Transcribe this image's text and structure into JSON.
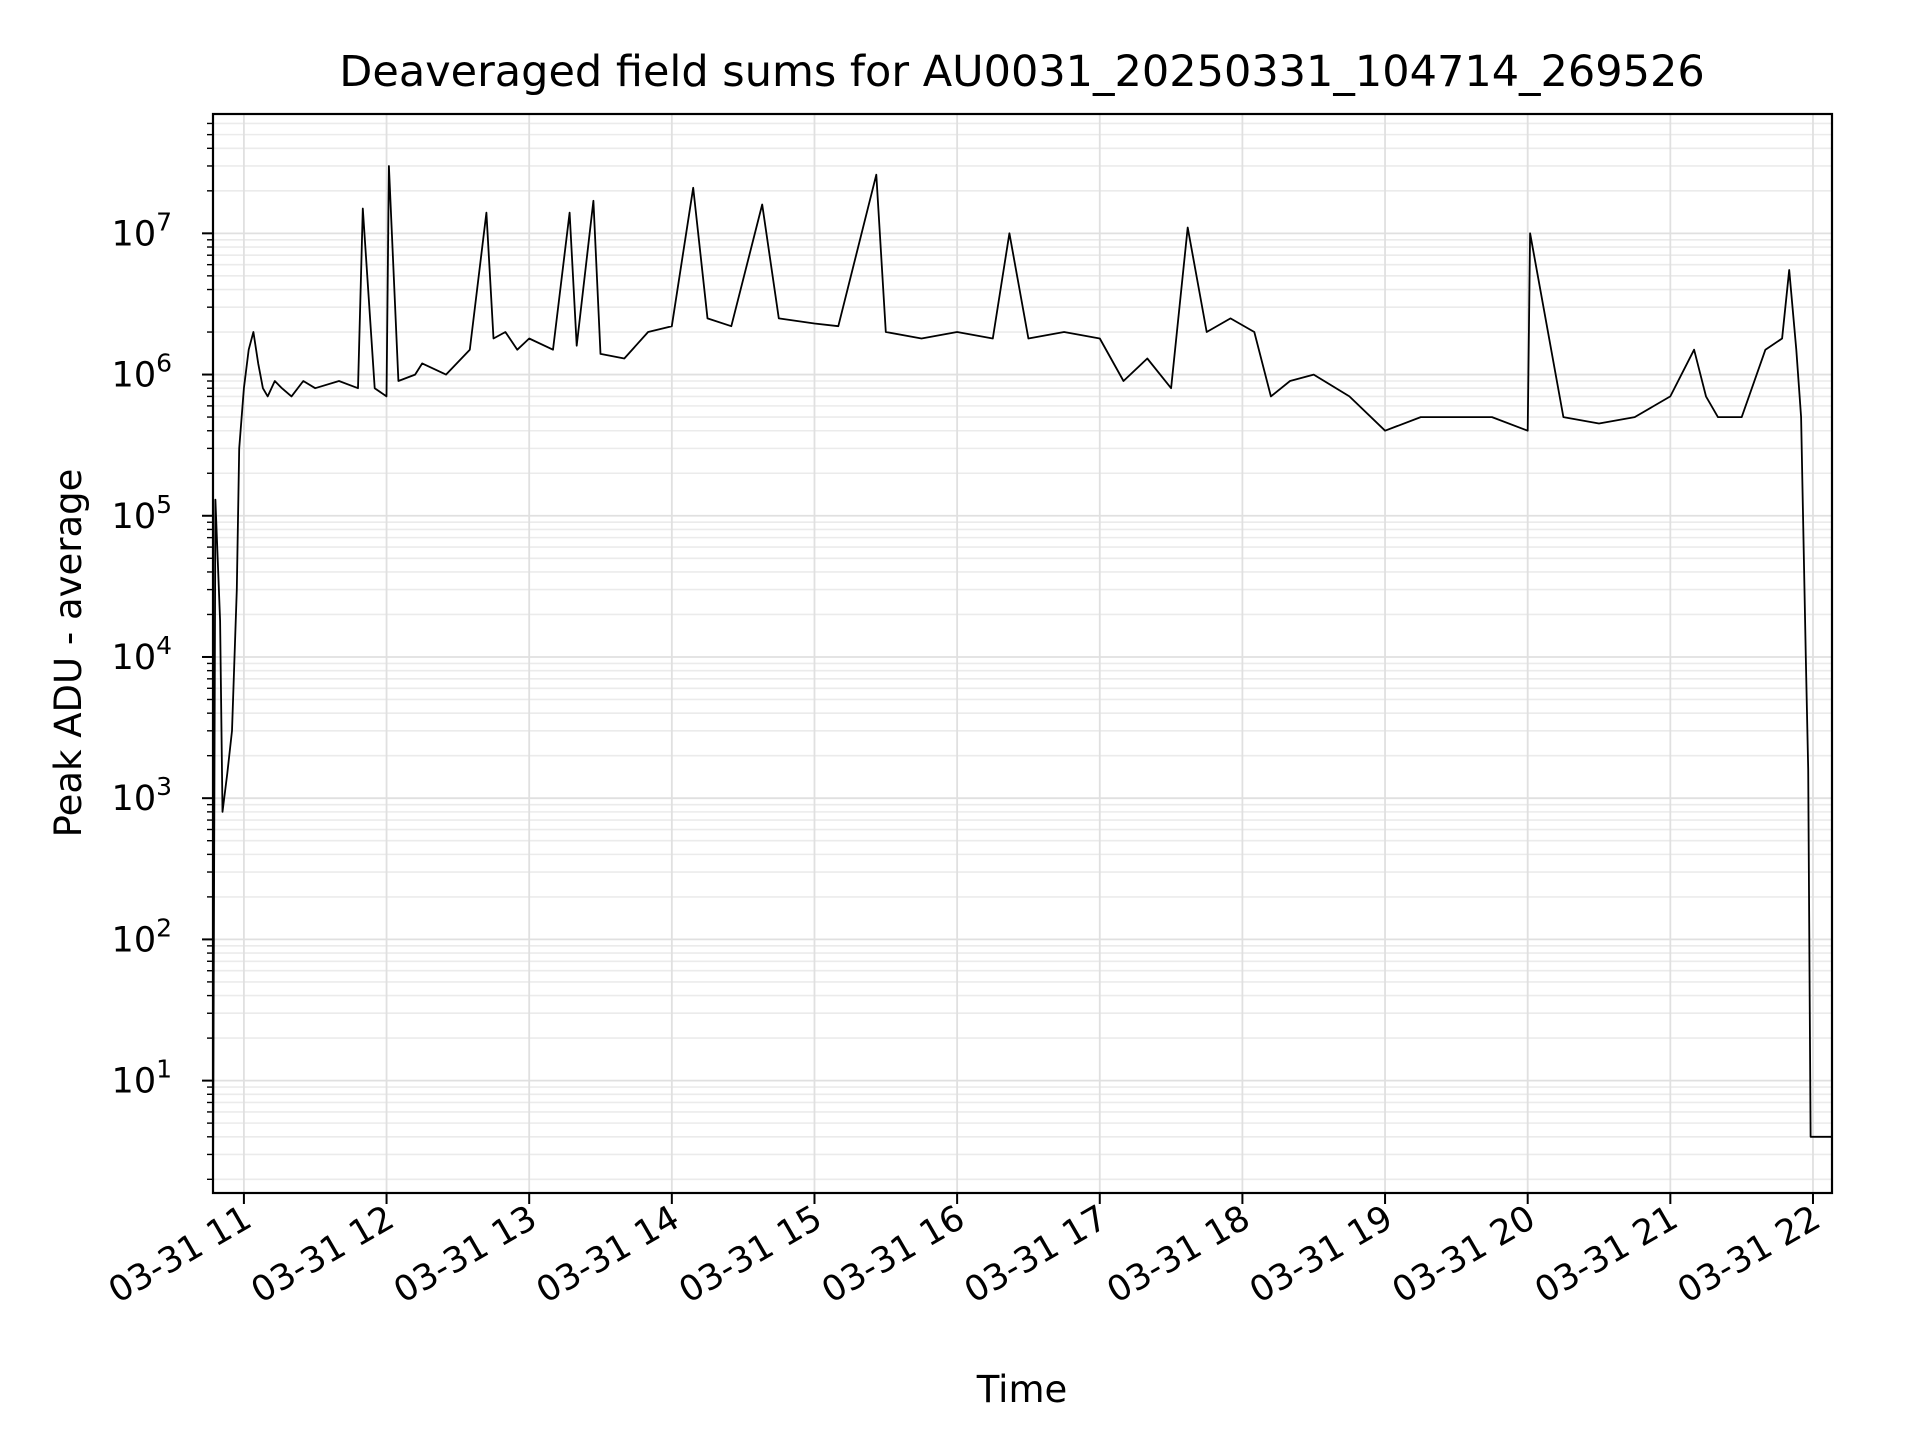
{
  "chart_data": {
    "type": "line",
    "title": "Deaveraged field sums for AU0031_20250331_104714_269526",
    "xlabel": "Time",
    "ylabel": "Peak ADU - average",
    "yscale": "log",
    "xlim": [
      "2025-03-31 10:47",
      "2025-03-31 22:08"
    ],
    "ylim": [
      1.6,
      70000000
    ],
    "grid": true,
    "x_ticks": [
      "03-31 11",
      "03-31 12",
      "03-31 13",
      "03-31 14",
      "03-31 15",
      "03-31 16",
      "03-31 17",
      "03-31 18",
      "03-31 19",
      "03-31 20",
      "03-31 21",
      "03-31 22"
    ],
    "y_ticks": [
      {
        "value": 10,
        "base": "10",
        "exp": "1"
      },
      {
        "value": 100,
        "base": "10",
        "exp": "2"
      },
      {
        "value": 1000,
        "base": "10",
        "exp": "3"
      },
      {
        "value": 10000,
        "base": "10",
        "exp": "4"
      },
      {
        "value": 100000,
        "base": "10",
        "exp": "5"
      },
      {
        "value": 1000000,
        "base": "10",
        "exp": "6"
      },
      {
        "value": 10000000,
        "base": "10",
        "exp": "7"
      }
    ],
    "line_color": "#000000",
    "series": [
      {
        "x": [
          "2025-03-31 10:47",
          "2025-03-31 10:48",
          "2025-03-31 10:50",
          "2025-03-31 10:51",
          "2025-03-31 10:53",
          "2025-03-31 10:55",
          "2025-03-31 10:57",
          "2025-03-31 10:58",
          "2025-03-31 11:00",
          "2025-03-31 11:02",
          "2025-03-31 11:04",
          "2025-03-31 11:06",
          "2025-03-31 11:08",
          "2025-03-31 11:10",
          "2025-03-31 11:13",
          "2025-03-31 11:16",
          "2025-03-31 11:20",
          "2025-03-31 11:25",
          "2025-03-31 11:30",
          "2025-03-31 11:40",
          "2025-03-31 11:48",
          "2025-03-31 11:50",
          "2025-03-31 11:55",
          "2025-03-31 12:00",
          "2025-03-31 12:01",
          "2025-03-31 12:05",
          "2025-03-31 12:12",
          "2025-03-31 12:15",
          "2025-03-31 12:25",
          "2025-03-31 12:35",
          "2025-03-31 12:42",
          "2025-03-31 12:45",
          "2025-03-31 12:50",
          "2025-03-31 12:55",
          "2025-03-31 13:00",
          "2025-03-31 13:10",
          "2025-03-31 13:17",
          "2025-03-31 13:20",
          "2025-03-31 13:27",
          "2025-03-31 13:30",
          "2025-03-31 13:40",
          "2025-03-31 13:50",
          "2025-03-31 14:00",
          "2025-03-31 14:09",
          "2025-03-31 14:15",
          "2025-03-31 14:25",
          "2025-03-31 14:38",
          "2025-03-31 14:45",
          "2025-03-31 15:00",
          "2025-03-31 15:10",
          "2025-03-31 15:26",
          "2025-03-31 15:30",
          "2025-03-31 15:45",
          "2025-03-31 16:00",
          "2025-03-31 16:15",
          "2025-03-31 16:22",
          "2025-03-31 16:30",
          "2025-03-31 16:45",
          "2025-03-31 17:00",
          "2025-03-31 17:10",
          "2025-03-31 17:20",
          "2025-03-31 17:30",
          "2025-03-31 17:37",
          "2025-03-31 17:45",
          "2025-03-31 17:55",
          "2025-03-31 18:05",
          "2025-03-31 18:12",
          "2025-03-31 18:20",
          "2025-03-31 18:30",
          "2025-03-31 18:45",
          "2025-03-31 19:00",
          "2025-03-31 19:15",
          "2025-03-31 19:30",
          "2025-03-31 19:45",
          "2025-03-31 20:00",
          "2025-03-31 20:01",
          "2025-03-31 20:15",
          "2025-03-31 20:30",
          "2025-03-31 20:45",
          "2025-03-31 21:00",
          "2025-03-31 21:10",
          "2025-03-31 21:15",
          "2025-03-31 21:20",
          "2025-03-31 21:30",
          "2025-03-31 21:40",
          "2025-03-31 21:47",
          "2025-03-31 21:50",
          "2025-03-31 21:53",
          "2025-03-31 21:55",
          "2025-03-31 21:57",
          "2025-03-31 21:58",
          "2025-03-31 21:59",
          "2025-03-31 22:00",
          "2025-03-31 22:01",
          "2025-03-31 22:08"
        ],
        "y": [
          1.6,
          130000,
          18000,
          800,
          1500,
          3000,
          30000,
          300000,
          800000,
          1500000,
          2000000,
          1200000,
          800000,
          700000,
          900000,
          800000,
          700000,
          900000,
          800000,
          900000,
          800000,
          15000000,
          800000,
          700000,
          30000000,
          900000,
          1000000,
          1200000,
          1000000,
          1500000,
          14000000,
          1800000,
          2000000,
          1500000,
          1800000,
          1500000,
          14000000,
          1600000,
          17000000,
          1400000,
          1300000,
          2000000,
          2200000,
          21000000,
          2500000,
          2200000,
          16000000,
          2500000,
          2300000,
          2200000,
          26000000,
          2000000,
          1800000,
          2000000,
          1800000,
          10000000,
          1800000,
          2000000,
          1800000,
          900000,
          1300000,
          800000,
          11000000,
          2000000,
          2500000,
          2000000,
          700000,
          900000,
          1000000,
          700000,
          400000,
          500000,
          500000,
          500000,
          400000,
          10000000,
          500000,
          450000,
          500000,
          700000,
          1500000,
          700000,
          500000,
          500000,
          1500000,
          1800000,
          5500000,
          1500000,
          500000,
          10000,
          1600,
          4,
          4,
          4,
          4
        ]
      }
    ]
  }
}
